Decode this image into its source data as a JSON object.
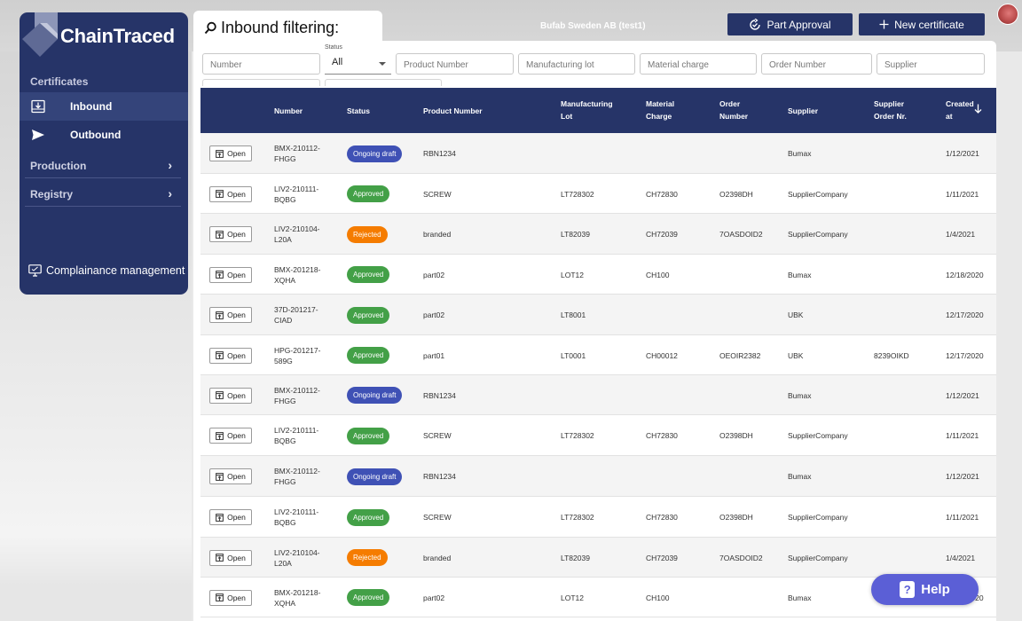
{
  "app": {
    "logo_text": "ChainTraced",
    "company": "Bufab Sweden AB (test1)"
  },
  "sidebar": {
    "section_label": "Certificates",
    "items": [
      {
        "label": "Inbound",
        "icon": "inbox-icon"
      },
      {
        "label": "Outbound",
        "icon": "send-icon"
      }
    ],
    "groups": [
      {
        "label": "Production"
      },
      {
        "label": "Registry"
      }
    ],
    "compliance": {
      "label": "Complainance management",
      "icon": "monitor-icon"
    }
  },
  "header": {
    "title": "Inbound filtering:",
    "part_approval_label": "Part Approval",
    "new_certificate_label": "New certificate"
  },
  "filters": {
    "number_placeholder": "Number",
    "status_caption": "Status",
    "status_value": "All",
    "product_number_placeholder": "Product Number",
    "manufacturing_lot_placeholder": "Manufacturing lot",
    "material_charge_placeholder": "Material charge",
    "order_number_placeholder": "Order Number",
    "supplier_placeholder": "Supplier"
  },
  "table": {
    "columns": {
      "number": "Number",
      "status": "Status",
      "product_number": "Product Number",
      "manufacturing_lot_1": "Manufacturing",
      "manufacturing_lot_2": "Lot",
      "material_charge_1": "Material",
      "material_charge_2": "Charge",
      "order_number_1": "Order",
      "order_number_2": "Number",
      "supplier": "Supplier",
      "supplier_order_1": "Supplier",
      "supplier_order_2": "Order Nr.",
      "created_1": "Created",
      "created_2": "at"
    },
    "open_label": "Open",
    "rows": [
      {
        "number_1": "BMX-210112-",
        "number_2": "FHGG",
        "status": "Ongoing draft",
        "product": "RBN1234",
        "lot": "",
        "charge": "",
        "order": "",
        "supplier": "Bumax",
        "supplier_order": "",
        "created": "1/12/2021"
      },
      {
        "number_1": "LIV2-210111-",
        "number_2": "BQBG",
        "status": "Approved",
        "product": "SCREW",
        "lot": "LT728302",
        "charge": "CH72830",
        "order": "O2398DH",
        "supplier": "SupplierCompany",
        "supplier_order": "",
        "created": "1/11/2021"
      },
      {
        "number_1": "LIV2-210104-",
        "number_2": "L20A",
        "status": "Rejected",
        "product": "branded",
        "lot": "LT82039",
        "charge": "CH72039",
        "order": "7OASDOID2",
        "supplier": "SupplierCompany",
        "supplier_order": "",
        "created": "1/4/2021"
      },
      {
        "number_1": "BMX-201218-",
        "number_2": "XQHA",
        "status": "Approved",
        "product": "part02",
        "lot": "LOT12",
        "charge": "CH100",
        "order": "",
        "supplier": "Bumax",
        "supplier_order": "",
        "created": "12/18/2020"
      },
      {
        "number_1": "37D-201217-",
        "number_2": "CIAD",
        "status": "Approved",
        "product": "part02",
        "lot": "LT8001",
        "charge": "",
        "order": "",
        "supplier": "UBK",
        "supplier_order": "",
        "created": "12/17/2020"
      },
      {
        "number_1": "HPG-201217-",
        "number_2": "589G",
        "status": "Approved",
        "product": "part01",
        "lot": "LT0001",
        "charge": "CH00012",
        "order": "OEOIR2382",
        "supplier": "UBK",
        "supplier_order": "8239OIKD",
        "created": "12/17/2020"
      },
      {
        "number_1": "BMX-210112-",
        "number_2": "FHGG",
        "status": "Ongoing draft",
        "product": "RBN1234",
        "lot": "",
        "charge": "",
        "order": "",
        "supplier": "Bumax",
        "supplier_order": "",
        "created": "1/12/2021"
      },
      {
        "number_1": "LIV2-210111-",
        "number_2": "BQBG",
        "status": "Approved",
        "product": "SCREW",
        "lot": "LT728302",
        "charge": "CH72830",
        "order": "O2398DH",
        "supplier": "SupplierCompany",
        "supplier_order": "",
        "created": "1/11/2021"
      },
      {
        "number_1": "BMX-210112-",
        "number_2": "FHGG",
        "status": "Ongoing draft",
        "product": "RBN1234",
        "lot": "",
        "charge": "",
        "order": "",
        "supplier": "Bumax",
        "supplier_order": "",
        "created": "1/12/2021"
      },
      {
        "number_1": "LIV2-210111-",
        "number_2": "BQBG",
        "status": "Approved",
        "product": "SCREW",
        "lot": "LT728302",
        "charge": "CH72830",
        "order": "O2398DH",
        "supplier": "SupplierCompany",
        "supplier_order": "",
        "created": "1/11/2021"
      },
      {
        "number_1": "LIV2-210104-",
        "number_2": "L20A",
        "status": "Rejected",
        "product": "branded",
        "lot": "LT82039",
        "charge": "CH72039",
        "order": "7OASDOID2",
        "supplier": "SupplierCompany",
        "supplier_order": "",
        "created": "1/4/2021"
      },
      {
        "number_1": "BMX-201218-",
        "number_2": "XQHA",
        "status": "Approved",
        "product": "part02",
        "lot": "LOT12",
        "charge": "CH100",
        "order": "",
        "supplier": "Bumax",
        "supplier_order": "",
        "created": "12/18/2020"
      }
    ]
  },
  "help": {
    "label": "Help"
  },
  "colors": {
    "primary": "#263468",
    "draft": "#3f51b5",
    "approved": "#43a047",
    "rejected": "#f57c00",
    "help": "#5b5fd6"
  }
}
